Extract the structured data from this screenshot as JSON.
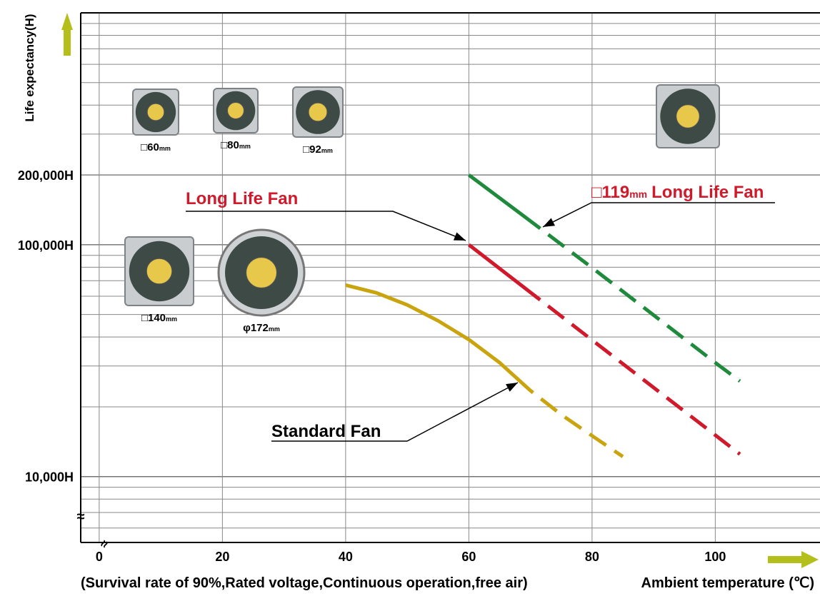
{
  "chart_data": {
    "type": "line",
    "y_label": "Life expectancy(H)",
    "x_label": "Ambient temperature (℃)",
    "note": "(Survival rate of 90%,Rated voltage,Continuous operation,free air)",
    "log_y": true,
    "grid": true,
    "xlim": [
      -3,
      117
    ],
    "xticks": [
      0,
      20,
      40,
      60,
      80,
      100
    ],
    "ylim": [
      5200,
      1000000
    ],
    "yticks": [
      {
        "value": 10000,
        "label": "10,000H"
      },
      {
        "value": 100000,
        "label": "100,000H"
      },
      {
        "value": 200000,
        "label": "200,000H"
      }
    ],
    "series": [
      {
        "name": "Standard Fan",
        "color": "#c9a40e",
        "solid_until": 68,
        "x": [
          40,
          45,
          50,
          55,
          60,
          65,
          70,
          75,
          80,
          85
        ],
        "values": [
          67000,
          62000,
          55000,
          47000,
          39000,
          31000,
          23500,
          18500,
          15000,
          12200
        ]
      },
      {
        "name": "Long Life Fan",
        "color": "#d0192b",
        "solid_until": 69,
        "x": [
          60,
          70,
          80,
          90,
          100,
          104
        ],
        "values": [
          100000,
          62300,
          38800,
          24200,
          15100,
          12500
        ]
      },
      {
        "name": "Long Life Fan",
        "size": "□119",
        "unit": "mm",
        "color": "#1f8a3c",
        "solid_until": 69,
        "x": [
          60,
          70,
          80,
          90,
          100,
          104
        ],
        "values": [
          200000,
          126500,
          79600,
          49700,
          31000,
          25800
        ]
      }
    ],
    "fan_pictures": [
      {
        "size": "□60",
        "unit": "mm"
      },
      {
        "size": "□80",
        "unit": "mm"
      },
      {
        "size": "□92",
        "unit": "mm"
      },
      {
        "size": "□140",
        "unit": "mm"
      },
      {
        "size": "φ172",
        "unit": "mm"
      }
    ]
  }
}
